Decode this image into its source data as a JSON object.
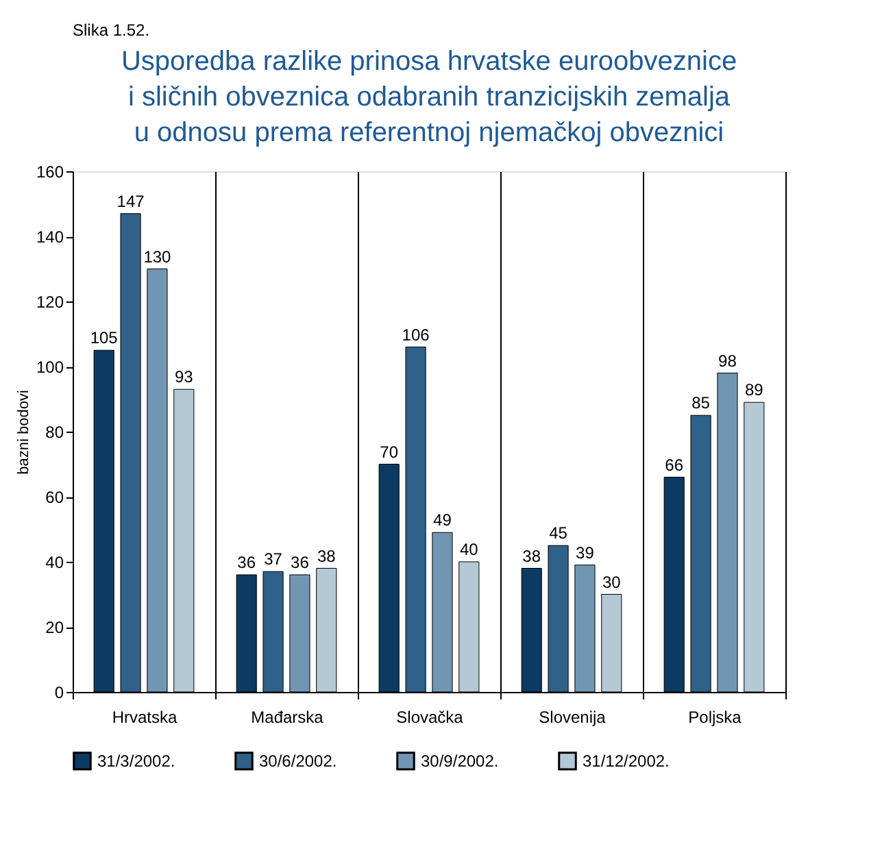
{
  "chart_data": {
    "type": "bar",
    "title": "Usporedba razlike prinosa hrvatske euroobveznice\ni sličnih obveznica odabranih tranzicijskih zemalja\nu odnosu prema referentnoj njemačkoj obveznici",
    "annotations": [
      "Slika 1.52."
    ],
    "ylabel": "bazni bodovi",
    "categories": [
      "Hrvatska",
      "Mađarska",
      "Slovačka",
      "Slovenija",
      "Poljska"
    ],
    "series": [
      {
        "name": "31/3/2002.",
        "color": "#0b3a63",
        "values": [
          105,
          36,
          70,
          38,
          66
        ]
      },
      {
        "name": "30/6/2002.",
        "color": "#2f6189",
        "values": [
          147,
          37,
          106,
          45,
          85
        ]
      },
      {
        "name": "30/9/2002.",
        "color": "#7196b3",
        "values": [
          130,
          36,
          49,
          39,
          98
        ]
      },
      {
        "name": "31/12/2002.",
        "color": "#b4c8d6",
        "values": [
          93,
          38,
          40,
          30,
          89
        ]
      }
    ],
    "ylim": [
      0,
      160
    ],
    "yticks": [
      0,
      20,
      40,
      60,
      80,
      100,
      120,
      140,
      160
    ],
    "grid": "x",
    "legend": "bottom",
    "data_labels": true
  }
}
